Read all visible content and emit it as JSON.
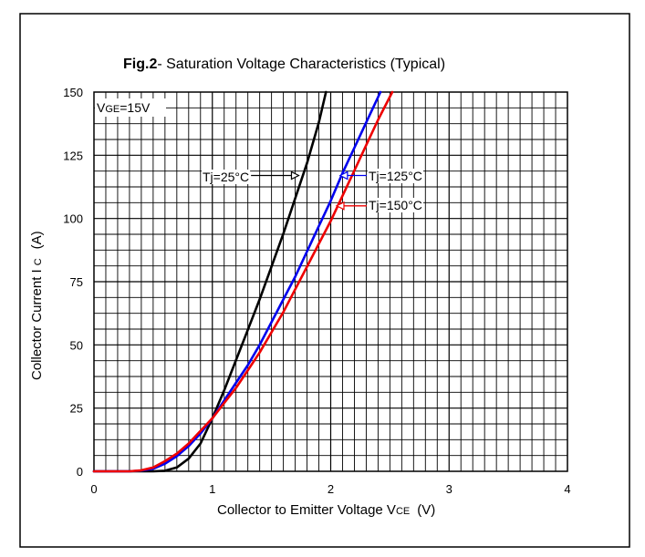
{
  "chart_data": {
    "type": "line",
    "title": {
      "bold": "Fig.2",
      "rest": "- Saturation Voltage Characteristics (Typical)"
    },
    "xlabel": {
      "main": "Collector to Emitter Voltage V",
      "sub": "CE",
      "unit": "(V)"
    },
    "ylabel": {
      "main": "Collector  Current  I",
      "sub": "C",
      "unit": "(A)"
    },
    "xlim": [
      0,
      4
    ],
    "ylim": [
      0,
      150
    ],
    "x_ticks": [
      "0",
      "1",
      "2",
      "3",
      "4"
    ],
    "y_ticks": [
      "0",
      "25",
      "50",
      "75",
      "100",
      "125",
      "150"
    ],
    "grid": true,
    "condition": {
      "prefix": "V",
      "sub": "GE",
      "value": "=15V"
    },
    "series": [
      {
        "name": "Tj=25°C",
        "color": "#000000",
        "x": [
          0,
          0.3,
          0.5,
          0.6,
          0.7,
          0.8,
          0.9,
          1.0,
          1.1,
          1.2,
          1.3,
          1.4,
          1.5,
          1.6,
          1.7,
          1.8,
          1.9,
          1.96
        ],
        "y": [
          0,
          0,
          0,
          0.2,
          1.5,
          5,
          11,
          21,
          32,
          44,
          56,
          68,
          81,
          94,
          108,
          122,
          138,
          150
        ]
      },
      {
        "name": "Tj=125°C",
        "color": "#0000ee",
        "x": [
          0,
          0.3,
          0.4,
          0.5,
          0.6,
          0.7,
          0.8,
          0.9,
          1.0,
          1.1,
          1.2,
          1.3,
          1.4,
          1.5,
          1.6,
          1.7,
          1.8,
          1.9,
          2.0,
          2.1,
          2.2,
          2.3,
          2.42
        ],
        "y": [
          0,
          0,
          0.3,
          1,
          3,
          6,
          10,
          15,
          21,
          28,
          35,
          42,
          50,
          59,
          68,
          77,
          87,
          97,
          107,
          118,
          128,
          138,
          150
        ]
      },
      {
        "name": "Tj=150°C",
        "color": "#ee0000",
        "x": [
          0,
          0.3,
          0.4,
          0.5,
          0.6,
          0.7,
          0.8,
          0.9,
          1.0,
          1.1,
          1.2,
          1.3,
          1.4,
          1.5,
          1.6,
          1.7,
          1.8,
          1.9,
          2.0,
          2.1,
          2.2,
          2.3,
          2.4,
          2.52
        ],
        "y": [
          0,
          0,
          0.4,
          1.5,
          4,
          7,
          11,
          16,
          21,
          27,
          33,
          40,
          47,
          55,
          63,
          72,
          81,
          90,
          99,
          109,
          119,
          129,
          139,
          150
        ]
      }
    ],
    "annotations": [
      {
        "text": "Tj=25°C",
        "arrow_to": [
          1.73,
          117
        ]
      },
      {
        "text": "Tj=125°C",
        "arrow_to": [
          2.08,
          117
        ]
      },
      {
        "text": "Tj=150°C",
        "arrow_to": [
          2.05,
          105
        ]
      }
    ]
  }
}
